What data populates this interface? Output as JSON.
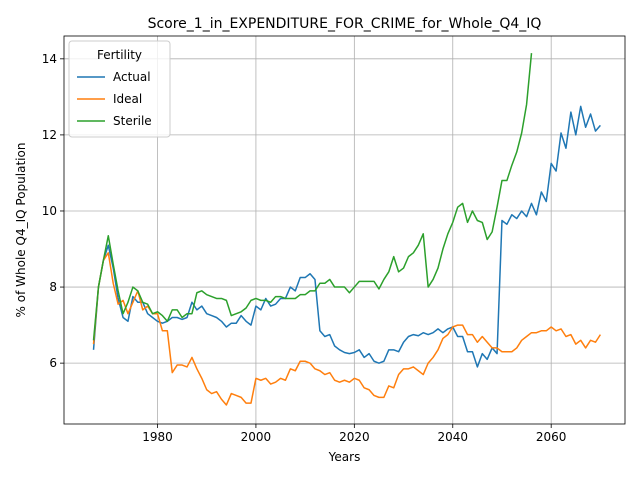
{
  "chart_data": {
    "type": "line",
    "title": "Score_1_in_EXPENDITURE_FOR_CRIME_for_Whole_Q4_IQ",
    "xlabel": "Years",
    "ylabel": "% of Whole Q4_IQ Population",
    "xlim": [
      1961,
      2075
    ],
    "ylim": [
      4.4,
      14.6
    ],
    "xticks": [
      1980,
      2000,
      2020,
      2040,
      2060
    ],
    "yticks": [
      6,
      8,
      10,
      12,
      14
    ],
    "grid": true,
    "legend": {
      "title": "Fertility",
      "placement": "top-left"
    },
    "series": [
      {
        "name": "Actual",
        "color": "#1f77b4",
        "points": [
          [
            1967,
            6.35
          ],
          [
            1968,
            8.0
          ],
          [
            1969,
            8.7
          ],
          [
            1970,
            9.1
          ],
          [
            1971,
            8.5
          ],
          [
            1972,
            7.7
          ],
          [
            1973,
            7.2
          ],
          [
            1974,
            7.1
          ],
          [
            1975,
            7.75
          ],
          [
            1976,
            7.6
          ],
          [
            1977,
            7.6
          ],
          [
            1978,
            7.3
          ],
          [
            1979,
            7.2
          ],
          [
            1980,
            7.1
          ],
          [
            1981,
            7.05
          ],
          [
            1982,
            7.1
          ],
          [
            1983,
            7.2
          ],
          [
            1984,
            7.2
          ],
          [
            1985,
            7.15
          ],
          [
            1986,
            7.2
          ],
          [
            1987,
            7.6
          ],
          [
            1988,
            7.4
          ],
          [
            1989,
            7.5
          ],
          [
            1990,
            7.3
          ],
          [
            1991,
            7.25
          ],
          [
            1992,
            7.2
          ],
          [
            1993,
            7.1
          ],
          [
            1994,
            6.95
          ],
          [
            1995,
            7.05
          ],
          [
            1996,
            7.05
          ],
          [
            1997,
            7.25
          ],
          [
            1998,
            7.1
          ],
          [
            1999,
            7.0
          ],
          [
            2000,
            7.5
          ],
          [
            2001,
            7.4
          ],
          [
            2002,
            7.7
          ],
          [
            2003,
            7.5
          ],
          [
            2004,
            7.55
          ],
          [
            2005,
            7.7
          ],
          [
            2006,
            7.7
          ],
          [
            2007,
            8.0
          ],
          [
            2008,
            7.9
          ],
          [
            2009,
            8.25
          ],
          [
            2010,
            8.25
          ],
          [
            2011,
            8.35
          ],
          [
            2012,
            8.2
          ],
          [
            2013,
            6.85
          ],
          [
            2014,
            6.7
          ],
          [
            2015,
            6.75
          ],
          [
            2016,
            6.45
          ],
          [
            2017,
            6.35
          ],
          [
            2018,
            6.28
          ],
          [
            2019,
            6.25
          ],
          [
            2020,
            6.28
          ],
          [
            2021,
            6.35
          ],
          [
            2022,
            6.15
          ],
          [
            2023,
            6.25
          ],
          [
            2024,
            6.05
          ],
          [
            2025,
            6.0
          ],
          [
            2026,
            6.05
          ],
          [
            2027,
            6.35
          ],
          [
            2028,
            6.35
          ],
          [
            2029,
            6.3
          ],
          [
            2030,
            6.55
          ],
          [
            2031,
            6.7
          ],
          [
            2032,
            6.75
          ],
          [
            2033,
            6.72
          ],
          [
            2034,
            6.8
          ],
          [
            2035,
            6.75
          ],
          [
            2036,
            6.8
          ],
          [
            2037,
            6.9
          ],
          [
            2038,
            6.8
          ],
          [
            2039,
            6.9
          ],
          [
            2040,
            6.95
          ],
          [
            2041,
            6.7
          ],
          [
            2042,
            6.7
          ],
          [
            2043,
            6.3
          ],
          [
            2044,
            6.3
          ],
          [
            2045,
            5.9
          ],
          [
            2046,
            6.25
          ],
          [
            2047,
            6.1
          ],
          [
            2048,
            6.4
          ],
          [
            2049,
            6.25
          ],
          [
            2050,
            9.75
          ],
          [
            2051,
            9.65
          ],
          [
            2052,
            9.9
          ],
          [
            2053,
            9.8
          ],
          [
            2054,
            10.0
          ],
          [
            2055,
            9.85
          ],
          [
            2056,
            10.2
          ],
          [
            2057,
            9.9
          ],
          [
            2058,
            10.5
          ],
          [
            2059,
            10.25
          ],
          [
            2060,
            11.25
          ],
          [
            2061,
            11.05
          ],
          [
            2062,
            12.05
          ],
          [
            2063,
            11.65
          ],
          [
            2064,
            12.6
          ],
          [
            2065,
            12.0
          ],
          [
            2066,
            12.75
          ],
          [
            2067,
            12.2
          ],
          [
            2068,
            12.55
          ],
          [
            2069,
            12.1
          ],
          [
            2070,
            12.25
          ]
        ]
      },
      {
        "name": "Ideal",
        "color": "#ff7f0e",
        "points": [
          [
            1967,
            6.5
          ],
          [
            1968,
            8.0
          ],
          [
            1969,
            8.7
          ],
          [
            1970,
            8.9
          ],
          [
            1971,
            8.1
          ],
          [
            1972,
            7.55
          ],
          [
            1973,
            7.65
          ],
          [
            1974,
            7.3
          ],
          [
            1975,
            7.6
          ],
          [
            1976,
            7.9
          ],
          [
            1977,
            7.4
          ],
          [
            1978,
            7.5
          ],
          [
            1979,
            7.3
          ],
          [
            1980,
            7.3
          ],
          [
            1981,
            6.85
          ],
          [
            1982,
            6.85
          ],
          [
            1983,
            5.75
          ],
          [
            1984,
            5.95
          ],
          [
            1985,
            5.95
          ],
          [
            1986,
            5.9
          ],
          [
            1987,
            6.15
          ],
          [
            1988,
            5.85
          ],
          [
            1989,
            5.6
          ],
          [
            1990,
            5.3
          ],
          [
            1991,
            5.2
          ],
          [
            1992,
            5.25
          ],
          [
            1993,
            5.05
          ],
          [
            1994,
            4.9
          ],
          [
            1995,
            5.2
          ],
          [
            1996,
            5.15
          ],
          [
            1997,
            5.1
          ],
          [
            1998,
            4.95
          ],
          [
            1999,
            4.95
          ],
          [
            2000,
            5.6
          ],
          [
            2001,
            5.55
          ],
          [
            2002,
            5.6
          ],
          [
            2003,
            5.45
          ],
          [
            2004,
            5.5
          ],
          [
            2005,
            5.6
          ],
          [
            2006,
            5.55
          ],
          [
            2007,
            5.85
          ],
          [
            2008,
            5.8
          ],
          [
            2009,
            6.05
          ],
          [
            2010,
            6.05
          ],
          [
            2011,
            6.0
          ],
          [
            2012,
            5.85
          ],
          [
            2013,
            5.8
          ],
          [
            2014,
            5.7
          ],
          [
            2015,
            5.75
          ],
          [
            2016,
            5.55
          ],
          [
            2017,
            5.5
          ],
          [
            2018,
            5.55
          ],
          [
            2019,
            5.5
          ],
          [
            2020,
            5.6
          ],
          [
            2021,
            5.55
          ],
          [
            2022,
            5.35
          ],
          [
            2023,
            5.3
          ],
          [
            2024,
            5.15
          ],
          [
            2025,
            5.1
          ],
          [
            2026,
            5.1
          ],
          [
            2027,
            5.4
          ],
          [
            2028,
            5.35
          ],
          [
            2029,
            5.7
          ],
          [
            2030,
            5.85
          ],
          [
            2031,
            5.85
          ],
          [
            2032,
            5.9
          ],
          [
            2033,
            5.8
          ],
          [
            2034,
            5.7
          ],
          [
            2035,
            6.0
          ],
          [
            2036,
            6.15
          ],
          [
            2037,
            6.35
          ],
          [
            2038,
            6.65
          ],
          [
            2039,
            6.75
          ],
          [
            2040,
            6.95
          ],
          [
            2041,
            7.0
          ],
          [
            2042,
            7.0
          ],
          [
            2043,
            6.75
          ],
          [
            2044,
            6.75
          ],
          [
            2045,
            6.55
          ],
          [
            2046,
            6.7
          ],
          [
            2047,
            6.55
          ],
          [
            2048,
            6.4
          ],
          [
            2049,
            6.4
          ],
          [
            2050,
            6.3
          ],
          [
            2051,
            6.3
          ],
          [
            2052,
            6.3
          ],
          [
            2053,
            6.4
          ],
          [
            2054,
            6.6
          ],
          [
            2055,
            6.7
          ],
          [
            2056,
            6.8
          ],
          [
            2057,
            6.8
          ],
          [
            2058,
            6.85
          ],
          [
            2059,
            6.85
          ],
          [
            2060,
            6.95
          ],
          [
            2061,
            6.85
          ],
          [
            2062,
            6.9
          ],
          [
            2063,
            6.7
          ],
          [
            2064,
            6.75
          ],
          [
            2065,
            6.5
          ],
          [
            2066,
            6.6
          ],
          [
            2067,
            6.4
          ],
          [
            2068,
            6.6
          ],
          [
            2069,
            6.55
          ],
          [
            2070,
            6.75
          ]
        ]
      },
      {
        "name": "Sterile",
        "color": "#2ca02c",
        "points": [
          [
            1967,
            6.6
          ],
          [
            1968,
            8.0
          ],
          [
            1969,
            8.7
          ],
          [
            1970,
            9.35
          ],
          [
            1971,
            8.6
          ],
          [
            1972,
            7.9
          ],
          [
            1973,
            7.3
          ],
          [
            1974,
            7.6
          ],
          [
            1975,
            8.0
          ],
          [
            1976,
            7.9
          ],
          [
            1977,
            7.6
          ],
          [
            1978,
            7.55
          ],
          [
            1979,
            7.3
          ],
          [
            1980,
            7.35
          ],
          [
            1981,
            7.25
          ],
          [
            1982,
            7.1
          ],
          [
            1983,
            7.4
          ],
          [
            1984,
            7.4
          ],
          [
            1985,
            7.2
          ],
          [
            1986,
            7.3
          ],
          [
            1987,
            7.3
          ],
          [
            1988,
            7.85
          ],
          [
            1989,
            7.9
          ],
          [
            1990,
            7.8
          ],
          [
            1991,
            7.75
          ],
          [
            1992,
            7.7
          ],
          [
            1993,
            7.7
          ],
          [
            1994,
            7.65
          ],
          [
            1995,
            7.25
          ],
          [
            1996,
            7.3
          ],
          [
            1997,
            7.35
          ],
          [
            1998,
            7.45
          ],
          [
            1999,
            7.65
          ],
          [
            2000,
            7.7
          ],
          [
            2001,
            7.65
          ],
          [
            2002,
            7.65
          ],
          [
            2003,
            7.6
          ],
          [
            2004,
            7.75
          ],
          [
            2005,
            7.75
          ],
          [
            2006,
            7.7
          ],
          [
            2007,
            7.7
          ],
          [
            2008,
            7.7
          ],
          [
            2009,
            7.8
          ],
          [
            2010,
            7.8
          ],
          [
            2011,
            7.9
          ],
          [
            2012,
            7.9
          ],
          [
            2013,
            8.1
          ],
          [
            2014,
            8.1
          ],
          [
            2015,
            8.2
          ],
          [
            2016,
            8.0
          ],
          [
            2017,
            8.0
          ],
          [
            2018,
            8.0
          ],
          [
            2019,
            7.85
          ],
          [
            2020,
            8.0
          ],
          [
            2021,
            8.15
          ],
          [
            2022,
            8.15
          ],
          [
            2023,
            8.15
          ],
          [
            2024,
            8.15
          ],
          [
            2025,
            7.95
          ],
          [
            2026,
            8.2
          ],
          [
            2027,
            8.4
          ],
          [
            2028,
            8.8
          ],
          [
            2029,
            8.4
          ],
          [
            2030,
            8.5
          ],
          [
            2031,
            8.8
          ],
          [
            2032,
            8.9
          ],
          [
            2033,
            9.1
          ],
          [
            2034,
            9.4
          ],
          [
            2035,
            8.0
          ],
          [
            2036,
            8.2
          ],
          [
            2037,
            8.5
          ],
          [
            2038,
            9.0
          ],
          [
            2039,
            9.4
          ],
          [
            2040,
            9.7
          ],
          [
            2041,
            10.1
          ],
          [
            2042,
            10.2
          ],
          [
            2043,
            9.7
          ],
          [
            2044,
            10.0
          ],
          [
            2045,
            9.75
          ],
          [
            2046,
            9.7
          ],
          [
            2047,
            9.25
          ],
          [
            2048,
            9.45
          ],
          [
            2049,
            10.1
          ],
          [
            2050,
            10.8
          ],
          [
            2051,
            10.8
          ],
          [
            2052,
            11.2
          ],
          [
            2053,
            11.55
          ],
          [
            2054,
            12.05
          ],
          [
            2055,
            12.8
          ],
          [
            2056,
            14.15
          ]
        ]
      }
    ]
  }
}
